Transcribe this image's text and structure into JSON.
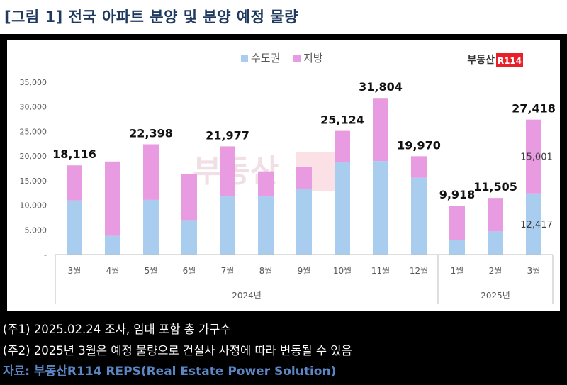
{
  "header": {
    "title": "[그림 1] 전국 아파트 분양 및 분양 예정 물량"
  },
  "logo": {
    "text": "부동산",
    "badge": "R114",
    "color": "#e8202a"
  },
  "chart_data": {
    "type": "bar",
    "stacked": true,
    "categories": [
      "3월",
      "4월",
      "5월",
      "6월",
      "7월",
      "8월",
      "9월",
      "10월",
      "11월",
      "12월",
      "1월",
      "2월",
      "3월"
    ],
    "groups": [
      {
        "label": "2024년",
        "count": 10
      },
      {
        "label": "2025년",
        "count": 3
      }
    ],
    "series": [
      {
        "name": "수도권",
        "color": "#a9cdee",
        "values": [
          11000,
          3800,
          11100,
          7000,
          11800,
          11800,
          13400,
          18800,
          19000,
          15600,
          2900,
          4700,
          12417
        ]
      },
      {
        "name": "지방",
        "color": "#e89be0",
        "values": [
          7116,
          15100,
          11298,
          9300,
          10177,
          5100,
          4400,
          6324,
          12804,
          4370,
          7018,
          6805,
          15001
        ]
      }
    ],
    "total_labels": [
      "18,116",
      "",
      "22,398",
      "",
      "21,977",
      "",
      "",
      "25,124",
      "31,804",
      "19,970",
      "9,918",
      "11,505",
      "27,418"
    ],
    "segment_labels": {
      "index": 12,
      "lower": "12,417",
      "upper": "15,001"
    },
    "y_ticks": [
      "-",
      "5,000",
      "10,000",
      "15,000",
      "20,000",
      "25,000",
      "30,000",
      "35,000"
    ],
    "ylim": [
      0,
      35000
    ],
    "legend_position": "top-center"
  },
  "notes": [
    "(주1) 2025.02.24 조사, 임대 포함 총 가구수",
    "(주2) 2025년 3월은 예정 물량으로 건설사 사정에 따라 변동될 수 있음"
  ],
  "source": "자료: 부동산R114 REPS(Real Estate Power Solution)"
}
